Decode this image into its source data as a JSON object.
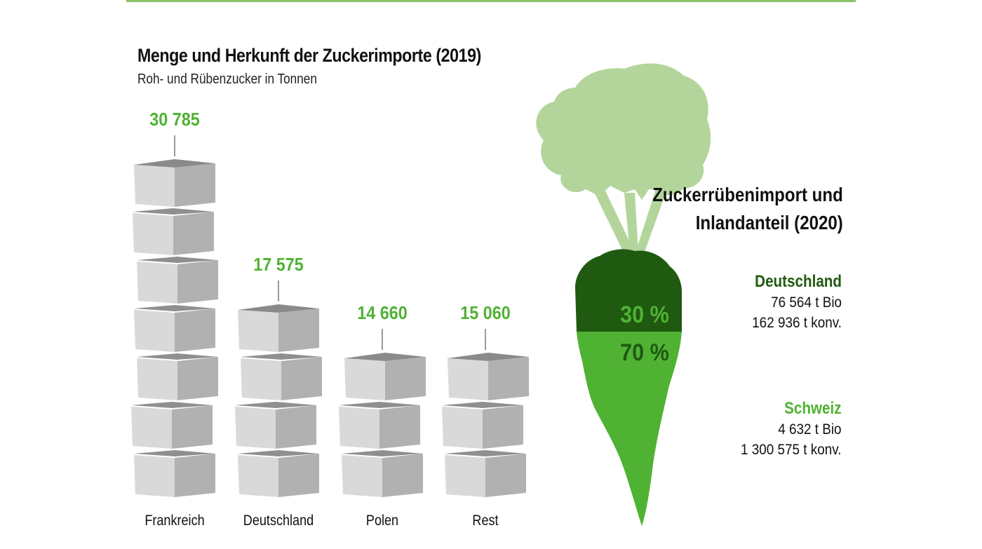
{
  "colors": {
    "accent_green": "#4fb233",
    "dark_green": "#1f5a10",
    "leaf_green": "#b3d59b",
    "cube_light": "#d9d9d9",
    "cube_dark": "#b1b1b1",
    "cube_top": "#8a8a8a",
    "top_rule": "#8cc26a"
  },
  "left_chart": {
    "title": "Menge und Herkunft der Zuckerimporte (2019)",
    "subtitle": "Roh- und Rübenzucker in Tonnen",
    "bars": [
      {
        "label": "Frankreich",
        "value_label": "30 785",
        "cubes": 7
      },
      {
        "label": "Deutschland",
        "value_label": "17 575",
        "cubes": 4
      },
      {
        "label": "Polen",
        "value_label": "14 660",
        "cubes": 3
      },
      {
        "label": "Rest",
        "value_label": "15 060",
        "cubes": 3
      }
    ]
  },
  "right_chart": {
    "title_line1": "Zuckerrübenimport und",
    "title_line2": "Inlandanteil (2020)",
    "top_share": "30 %",
    "bottom_share": "70 %",
    "regions": [
      {
        "name": "Deutschland",
        "bio": "76 564 t Bio",
        "konv": "162 936 t konv."
      },
      {
        "name": "Schweiz",
        "bio": "4 632 t Bio",
        "konv": "1 300 575 t konv."
      }
    ]
  },
  "chart_data": [
    {
      "type": "bar",
      "title": "Menge und Herkunft der Zuckerimporte (2019)",
      "subtitle": "Roh- und Rübenzucker in Tonnen",
      "categories": [
        "Frankreich",
        "Deutschland",
        "Polen",
        "Rest"
      ],
      "values": [
        30785,
        17575,
        14660,
        15060
      ],
      "xlabel": "",
      "ylabel": "Tonnen",
      "grid": false,
      "legend": "none"
    },
    {
      "type": "pie",
      "title": "Zuckerrübenimport und Inlandanteil (2020)",
      "categories": [
        "Import (dunkelgrün)",
        "Inlandanteil (hellgrün)"
      ],
      "values": [
        30,
        70
      ],
      "annotations": [
        {
          "region": "Deutschland",
          "bio_t": 76564,
          "konv_t": 162936
        },
        {
          "region": "Schweiz",
          "bio_t": 4632,
          "konv_t": 1300575
        }
      ]
    }
  ]
}
